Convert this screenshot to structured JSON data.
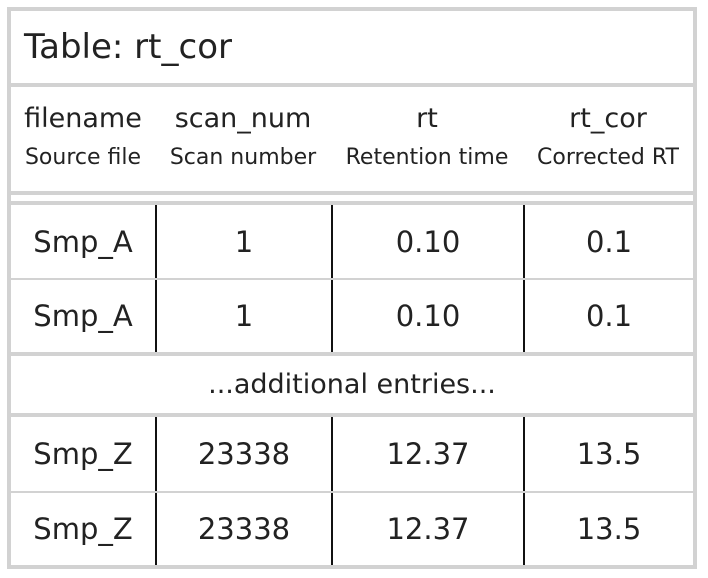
{
  "title": "Table: rt_cor",
  "columns": [
    {
      "name": "filename",
      "description": "Source file"
    },
    {
      "name": "scan_num",
      "description": "Scan number"
    },
    {
      "name": "rt",
      "description": "Retention time"
    },
    {
      "name": "rt_cor",
      "description": "Corrected RT"
    }
  ],
  "rows_top": [
    [
      "Smp_A",
      "1",
      "0.10",
      "0.1"
    ],
    [
      "Smp_A",
      "1",
      "0.10",
      "0.1"
    ]
  ],
  "ellipsis": "...additional entries...",
  "rows_bottom": [
    [
      "Smp_Z",
      "23338",
      "12.37",
      "13.5"
    ],
    [
      "Smp_Z",
      "23338",
      "12.37",
      "13.5"
    ]
  ]
}
